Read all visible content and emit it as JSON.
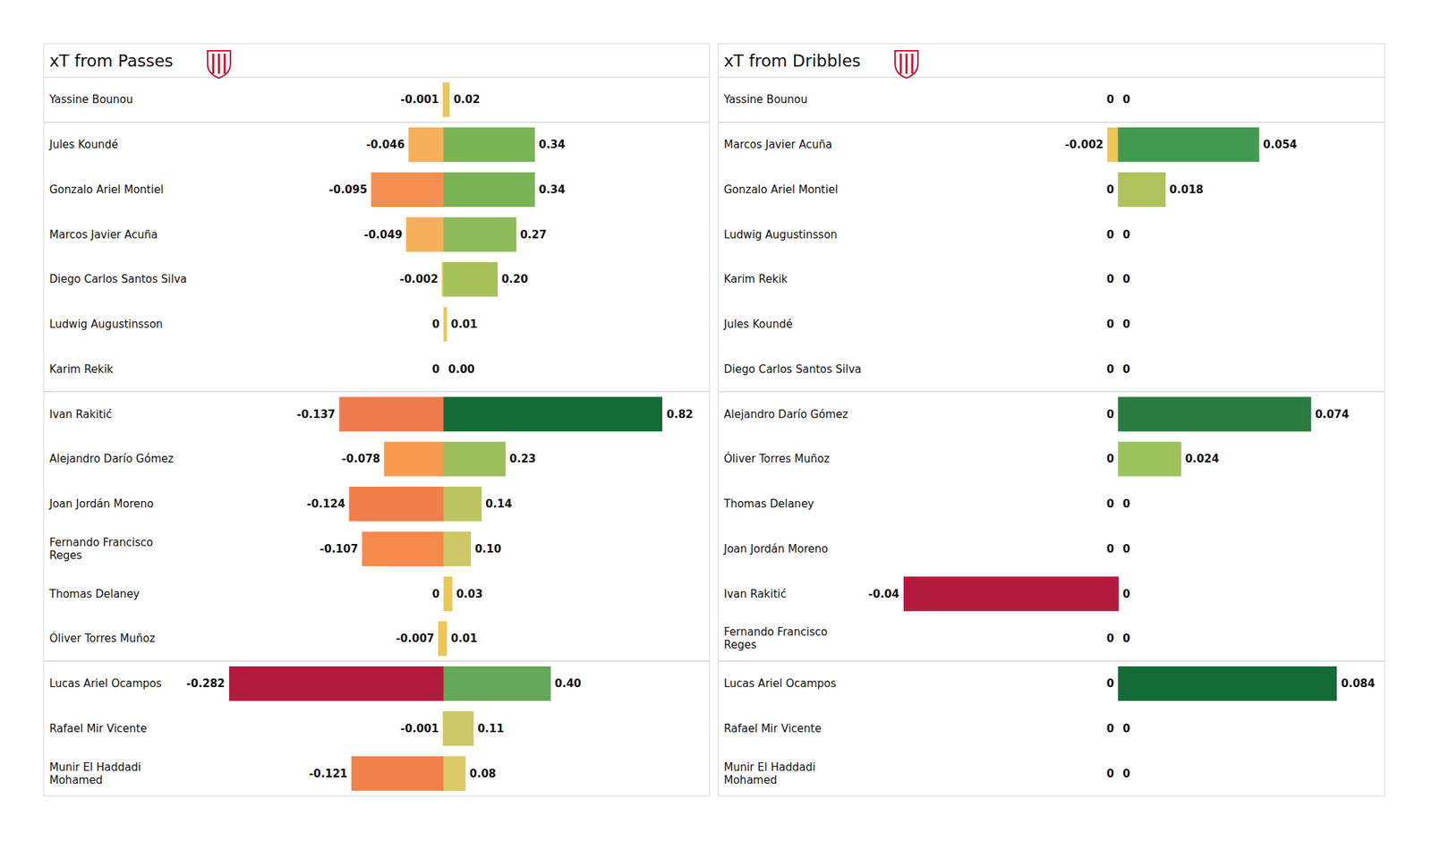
{
  "chart_data": [
    {
      "type": "bar",
      "title": "xT from Passes",
      "orientation": "horizontal",
      "data_labels": true,
      "tick_labels": "y",
      "categories": [
        "Yassine Bounou",
        "Jules Koundé",
        "Gonzalo Ariel Montiel",
        "Marcos Javier Acuña",
        "Diego Carlos Santos Silva",
        "Ludwig Augustinsson",
        "Karim Rekik",
        "Ivan Rakitić",
        "Alejandro Darío Gómez",
        "Joan Jordán Moreno",
        "Fernando Francisco\nReges",
        "Thomas Delaney",
        "Óliver Torres Muñoz",
        "Lucas Ariel Ocampos",
        "Rafael Mir Vicente",
        "Munir El Haddadi\nMohamed"
      ],
      "series": [
        {
          "xlim": [
            -0.282,
            0
          ],
          "values": [
            -0.001,
            -0.046,
            -0.095,
            -0.049,
            -0.002,
            0,
            0,
            -0.137,
            -0.078,
            -0.124,
            -0.107,
            0,
            -0.007,
            -0.282,
            -0.001,
            -0.121
          ],
          "value_labels": [
            "-0.001",
            "-0.046",
            "-0.095",
            "-0.049",
            "-0.002",
            "0",
            "0",
            "-0.137",
            "-0.078",
            "-0.124",
            "-0.107",
            "0",
            "-0.007",
            "-0.282",
            "-0.001",
            "-0.121"
          ],
          "colors": [
            "#f2c45a",
            "#f5b05c",
            "#f78f4e",
            "#f5b05c",
            "#e8c45a",
            "#f0c85a",
            "#f0c85a",
            "#ef7a4e",
            "#f79a50",
            "#f07f4c",
            "#f48a4c",
            "#f0c85a",
            "#f2c25a",
            "#b31b3e",
            "#f0c85a",
            "#f0804c"
          ]
        },
        {
          "xlim": [
            0,
            0.82
          ],
          "values": [
            0.02,
            0.34,
            0.34,
            0.27,
            0.2,
            0.01,
            0,
            0.82,
            0.23,
            0.14,
            0.1,
            0.03,
            0.01,
            0.4,
            0.11,
            0.08
          ],
          "value_labels": [
            "0.02",
            "0.34",
            "0.34",
            "0.27",
            "0.20",
            "0.01",
            "0.00",
            "0.82",
            "0.23",
            "0.14",
            "0.10",
            "0.03",
            "0.01",
            "0.40",
            "0.11",
            "0.08"
          ],
          "colors": [
            "#e8c85a",
            "#7ab356",
            "#7ab356",
            "#8ebb5a",
            "#a6c05a",
            "#e8c85a",
            "#f0c85a",
            "#156b37",
            "#9cbe5c",
            "#bbc562",
            "#cdc866",
            "#e8c85a",
            "#e8c85a",
            "#66a85a",
            "#cbc865",
            "#d9ca66"
          ]
        }
      ]
    },
    {
      "type": "bar",
      "title": "xT from Dribbles",
      "orientation": "horizontal",
      "data_labels": true,
      "tick_labels": "y",
      "categories": [
        "Yassine Bounou",
        "Marcos Javier Acuña",
        "Gonzalo Ariel Montiel",
        "Ludwig Augustinsson",
        "Karim Rekik",
        "Jules Koundé",
        "Diego Carlos Santos Silva",
        "Alejandro Darío Gómez",
        "Óliver Torres Muñoz",
        "Thomas Delaney",
        "Joan Jordán Moreno",
        "Ivan Rakitić",
        "Fernando Francisco\nReges",
        "Lucas Ariel Ocampos",
        "Rafael Mir Vicente",
        "Munir El Haddadi\nMohamed"
      ],
      "series": [
        {
          "xlim": [
            -0.04,
            0
          ],
          "values": [
            0,
            -0.002,
            0,
            0,
            0,
            0,
            0,
            0,
            0,
            0,
            0,
            -0.04,
            0,
            0,
            0,
            0
          ],
          "value_labels": [
            "0",
            "-0.002",
            "0",
            "0",
            "0",
            "0",
            "0",
            "0",
            "0",
            "0",
            "0",
            "-0.04",
            "0",
            "0",
            "0",
            "0"
          ],
          "colors": [
            "#f0c85a",
            "#f2c45a",
            "#f0c85a",
            "#f0c85a",
            "#f0c85a",
            "#f0c85a",
            "#f0c85a",
            "#f0c85a",
            "#f0c85a",
            "#f0c85a",
            "#f0c85a",
            "#b31b3e",
            "#f0c85a",
            "#f0c85a",
            "#f0c85a",
            "#f0c85a"
          ]
        },
        {
          "xlim": [
            0,
            0.084
          ],
          "values": [
            0,
            0.054,
            0.018,
            0,
            0,
            0,
            0,
            0.074,
            0.024,
            0,
            0,
            0,
            0,
            0.084,
            0,
            0
          ],
          "value_labels": [
            "0",
            "0.054",
            "0.018",
            "0",
            "0",
            "0",
            "0",
            "0.074",
            "0.024",
            "0",
            "0",
            "0",
            "0",
            "0.084",
            "0",
            "0"
          ],
          "colors": [
            "#f0c85a",
            "#429a52",
            "#b0c25e",
            "#f0c85a",
            "#f0c85a",
            "#f0c85a",
            "#f0c85a",
            "#2a7a42",
            "#9cc25a",
            "#f0c85a",
            "#f0c85a",
            "#f0c85a",
            "#f0c85a",
            "#156b37",
            "#f0c85a",
            "#f0c85a"
          ]
        }
      ]
    }
  ]
}
